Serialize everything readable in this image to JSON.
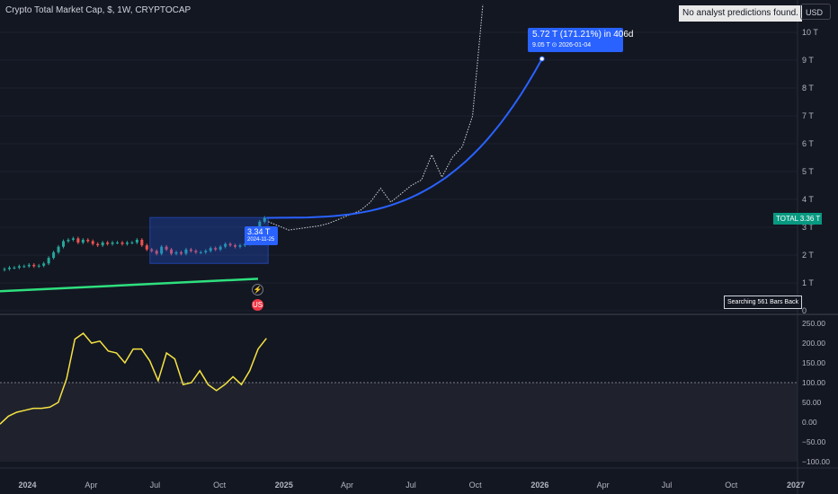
{
  "header": {
    "title": "Crypto Total Market Cap, $, 1W, CRYPTOCAP",
    "no_predictions": "No analyst predictions found.",
    "currency_button": "USD"
  },
  "projection_label": {
    "line1": "5.72 T (171.21%) in 406d",
    "line2": "9.05 T ⊙ 2026-01-04"
  },
  "current_label": {
    "line1": "3.34 T",
    "line2": "2024-11-25"
  },
  "price_scale": {
    "symbol_tag": "TOTAL",
    "last_price": "3.36 T",
    "labels": [
      "10 T",
      "9 T",
      "8 T",
      "7 T",
      "6 T",
      "5 T",
      "4 T",
      "3 T",
      "2 T",
      "1 T",
      "0"
    ]
  },
  "indicator_scale": {
    "labels": [
      "250.00",
      "200.00",
      "150.00",
      "100.00",
      "50.00",
      "0.00",
      "−50.00",
      "−100.00"
    ]
  },
  "searching_badge": "Searching 561 Bars Back",
  "events": {
    "lightning": "⚡",
    "flag": "US"
  },
  "time_axis": {
    "labels": [
      "2024",
      "Apr",
      "Jul",
      "Oct",
      "2025",
      "Apr",
      "Jul",
      "Oct",
      "2026",
      "Apr",
      "Jul",
      "Oct",
      "2027"
    ],
    "bold": [
      "2024",
      "2025",
      "2026",
      "2027"
    ]
  },
  "colors": {
    "background": "#131722",
    "up": "#26a69a",
    "down": "#ef5350",
    "projection": "#2962ff",
    "moving_average": "#2ee07e",
    "oscillator": "#f5e342",
    "box": "#2962ff"
  },
  "chart_data": [
    {
      "type": "candlestick",
      "title": "Crypto Total Market Cap, $, 1W, CRYPTOCAP",
      "unit": "T",
      "ylim": [
        0,
        11
      ],
      "x_range": [
        "2023-12-25",
        "2027-01-01"
      ],
      "weekly_close_approx": [
        1.5,
        1.55,
        1.55,
        1.6,
        1.6,
        1.65,
        1.6,
        1.62,
        1.7,
        1.9,
        2.1,
        2.3,
        2.5,
        2.55,
        2.6,
        2.45,
        2.55,
        2.5,
        2.4,
        2.35,
        2.45,
        2.4,
        2.45,
        2.45,
        2.4,
        2.45,
        2.45,
        2.55,
        2.35,
        2.2,
        2.15,
        2.05,
        2.3,
        2.2,
        2.05,
        2.1,
        2.05,
        2.2,
        2.15,
        2.1,
        2.1,
        2.15,
        2.25,
        2.2,
        2.3,
        2.4,
        2.35,
        2.3,
        2.35,
        2.4,
        2.5,
        2.9,
        3.2,
        3.34
      ],
      "last_close": 3.36,
      "last_bar_date": "2024-11-25",
      "moving_average": [
        [
          "2023-12-25",
          0.7
        ],
        [
          "2024-11-25",
          1.15
        ]
      ],
      "projection": {
        "from": 3.34,
        "to": 9.05,
        "target_date": "2026-01-04",
        "change": "5.72 T",
        "change_pct": 171.21,
        "days": 406
      },
      "historical_fractal_approx": [
        3.2,
        3.05,
        2.9,
        2.95,
        3.0,
        3.05,
        3.15,
        3.3,
        3.45,
        3.6,
        3.9,
        4.4,
        3.9,
        4.2,
        4.5,
        4.7,
        5.6,
        4.8,
        5.5,
        5.9,
        7.0,
        11.0
      ]
    },
    {
      "type": "line",
      "name": "oscillator",
      "ylim": [
        -100,
        260
      ],
      "reference_level": 100,
      "values": [
        -5,
        15,
        25,
        30,
        35,
        35,
        38,
        50,
        110,
        210,
        225,
        200,
        205,
        180,
        175,
        150,
        185,
        185,
        155,
        105,
        175,
        160,
        95,
        100,
        130,
        95,
        80,
        95,
        115,
        95,
        130,
        185,
        212
      ]
    }
  ]
}
